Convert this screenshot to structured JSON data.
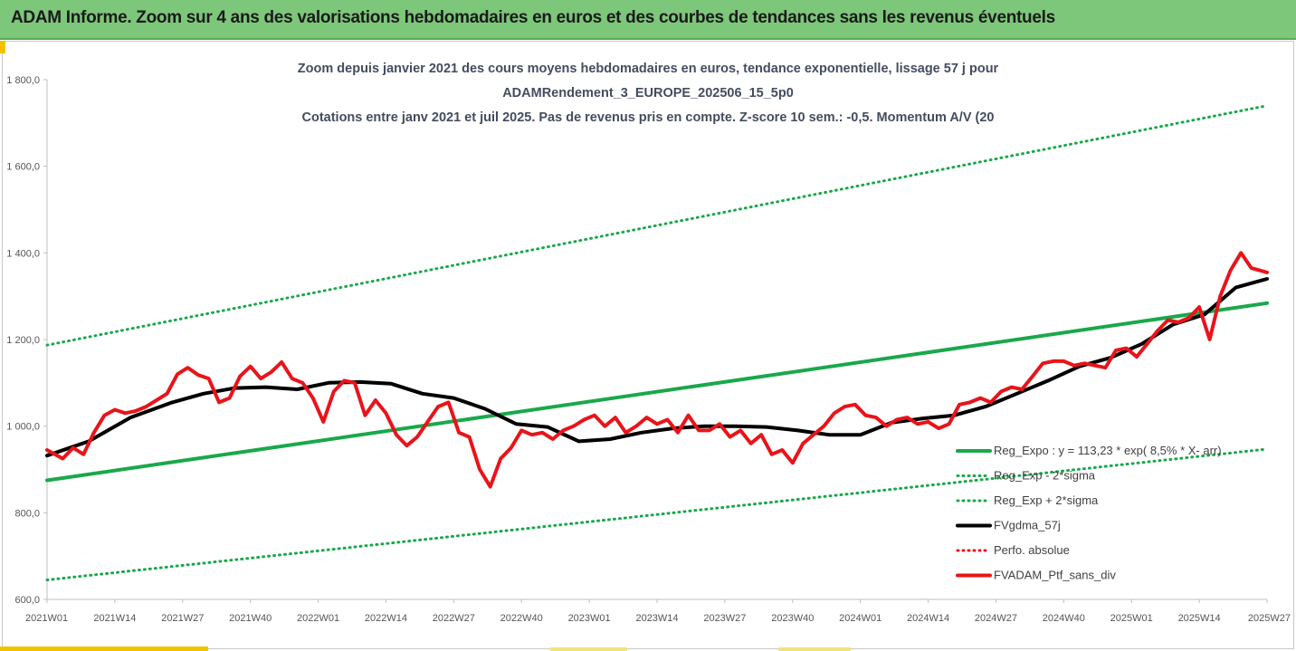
{
  "banner": {
    "title": "ADAM Informe. Zoom sur 4 ans des valorisations hebdomadaires en euros et des courbes de tendances sans les revenus éventuels",
    "color": "#7dc77a"
  },
  "chart_data": {
    "type": "line",
    "title_lines": [
      "Zoom depuis janvier 2021 des cours moyens hebdomadaires  en euros, tendance exponentielle, lissage 57 j pour",
      "ADAMRendement_3_EUROPE_202506_15_5p0",
      "Cotations entre janv 2021 et juil 2025. Pas de revenus pris en compte. Z-score 10 sem.: -0,5. Momentum A/V (20"
    ],
    "xlabel": "",
    "ylabel": "",
    "ylim": [
      600,
      1800
    ],
    "yticks": [
      "600,0",
      "800,0",
      "1 000,0",
      "1 200,0",
      "1 400,0",
      "1 600,0",
      "1 800,0"
    ],
    "ytick_values": [
      600,
      800,
      1000,
      1200,
      1400,
      1600,
      1800
    ],
    "x_count": 235,
    "xticks": [
      "2021W01",
      "2021W14",
      "2021W27",
      "2021W40",
      "2022W01",
      "2022W14",
      "2022W27",
      "2022W40",
      "2023W01",
      "2023W14",
      "2023W27",
      "2023W40",
      "2024W01",
      "2024W14",
      "2024W27",
      "2024W40",
      "2025W01",
      "2025W14",
      "2025W27"
    ],
    "grid": false,
    "legend_position": "bottom-right",
    "series": [
      {
        "name": "Reg_Expo : y = 113,23 * exp( 8,5% *  X- arr)",
        "color": "#1aa84a",
        "style": "solid",
        "x": [
          0,
          234
        ],
        "y": [
          875,
          1284
        ]
      },
      {
        "name": "Reg_Exp - 2*sigma",
        "color": "#1aa84a",
        "style": "dotted",
        "x": [
          0,
          234
        ],
        "y": [
          645,
          947
        ]
      },
      {
        "name": "Reg_Exp + 2*sigma",
        "color": "#1aa84a",
        "style": "dotted",
        "x": [
          0,
          234
        ],
        "y": [
          1187,
          1740
        ]
      },
      {
        "name": "FVgdma_57j",
        "color": "#000000",
        "style": "solid",
        "x": [
          0,
          8,
          16,
          24,
          30,
          36,
          42,
          48,
          54,
          60,
          66,
          72,
          78,
          84,
          90,
          96,
          102,
          108,
          114,
          120,
          126,
          132,
          138,
          144,
          150,
          156,
          162,
          168,
          174,
          180,
          186,
          192,
          198,
          204,
          210,
          216,
          222,
          228,
          234
        ],
        "y": [
          932,
          965,
          1020,
          1055,
          1075,
          1088,
          1090,
          1085,
          1100,
          1102,
          1098,
          1075,
          1065,
          1040,
          1005,
          998,
          965,
          970,
          985,
          995,
          1000,
          1000,
          998,
          990,
          980,
          980,
          1008,
          1018,
          1025,
          1045,
          1075,
          1105,
          1138,
          1158,
          1190,
          1235,
          1258,
          1320,
          1340
        ]
      },
      {
        "name": "Perfo. absolue",
        "color": "#e8141a",
        "style": "dotted",
        "x": [],
        "y": []
      },
      {
        "name": "FVADAM_Ptf_sans_div",
        "color": "#e8141a",
        "style": "solid",
        "x": [
          0,
          3,
          5,
          7,
          9,
          11,
          13,
          15,
          17,
          19,
          21,
          23,
          25,
          27,
          29,
          31,
          33,
          35,
          37,
          39,
          41,
          43,
          45,
          47,
          49,
          51,
          53,
          55,
          57,
          59,
          61,
          63,
          65,
          67,
          69,
          71,
          73,
          75,
          77,
          79,
          81,
          83,
          85,
          87,
          89,
          91,
          93,
          95,
          97,
          99,
          101,
          103,
          105,
          107,
          109,
          111,
          113,
          115,
          117,
          119,
          121,
          123,
          125,
          127,
          129,
          131,
          133,
          135,
          137,
          139,
          141,
          143,
          145,
          147,
          149,
          151,
          153,
          155,
          157,
          159,
          161,
          163,
          165,
          167,
          169,
          171,
          173,
          175,
          177,
          179,
          181,
          183,
          185,
          187,
          189,
          191,
          193,
          195,
          197,
          199,
          201,
          203,
          205,
          207,
          209,
          211,
          213,
          215,
          217,
          219,
          221,
          223,
          225,
          227,
          229,
          231,
          234
        ],
        "y": [
          945,
          925,
          950,
          935,
          985,
          1025,
          1038,
          1030,
          1035,
          1045,
          1060,
          1075,
          1120,
          1135,
          1118,
          1110,
          1055,
          1065,
          1115,
          1138,
          1110,
          1125,
          1148,
          1110,
          1100,
          1065,
          1010,
          1080,
          1105,
          1100,
          1025,
          1060,
          1030,
          980,
          955,
          975,
          1010,
          1045,
          1055,
          985,
          975,
          900,
          860,
          925,
          950,
          990,
          980,
          985,
          970,
          990,
          1000,
          1015,
          1025,
          1000,
          1020,
          985,
          1000,
          1020,
          1005,
          1015,
          985,
          1025,
          990,
          990,
          1005,
          975,
          990,
          960,
          980,
          935,
          945,
          915,
          960,
          980,
          1000,
          1030,
          1045,
          1050,
          1025,
          1020,
          1000,
          1015,
          1020,
          1005,
          1010,
          995,
          1005,
          1050,
          1055,
          1065,
          1055,
          1080,
          1090,
          1085,
          1115,
          1145,
          1150,
          1150,
          1140,
          1145,
          1140,
          1135,
          1175,
          1180,
          1160,
          1190,
          1220,
          1245,
          1240,
          1250,
          1275,
          1200,
          1300,
          1360,
          1400,
          1365,
          1355
        ]
      }
    ]
  }
}
